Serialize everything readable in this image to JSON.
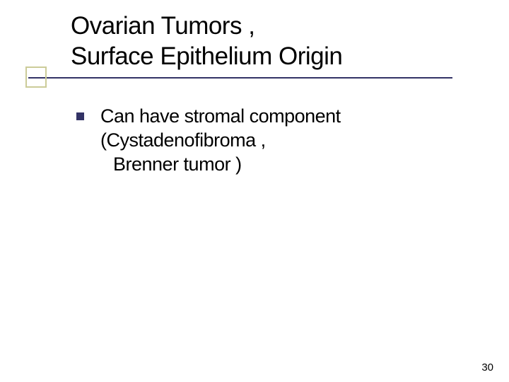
{
  "slide": {
    "title_line1": "Ovarian Tumors ,",
    "title_line2": "Surface Epithelium Origin",
    "body": {
      "line1": "Can have stromal component",
      "line2": "(Cystadenofibroma ,",
      "line3": "Brenner tumor )"
    },
    "page_number": "30"
  },
  "style": {
    "background_color": "#ffffff",
    "title_fontsize": 35,
    "title_color": "#000000",
    "body_fontsize": 27,
    "body_color": "#000000",
    "underline_color": "#333366",
    "square_border_color": "#cccc99",
    "bullet_color": "#333366",
    "bullet_size": 11,
    "page_number_fontsize": 15
  }
}
